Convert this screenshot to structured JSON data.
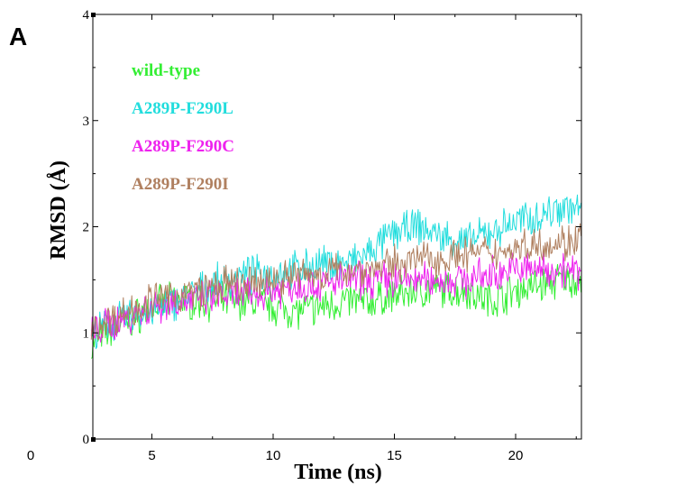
{
  "panel_label": "A",
  "chart_data": {
    "type": "line",
    "title": "",
    "xlabel": "Time (ns)",
    "ylabel": "RMSD (Å)",
    "xlim": [
      0,
      24
    ],
    "ylim": [
      0,
      4
    ],
    "x_visible_start": 2.5,
    "xticks": [
      0,
      5,
      10,
      15,
      20
    ],
    "yticks": [
      0,
      1,
      2,
      3,
      4
    ],
    "grid": false,
    "legend_position": "top-left",
    "series": [
      {
        "name": "wild-type",
        "color": "#33ee33",
        "x": [
          2.5,
          3,
          4,
          5,
          6,
          7,
          8,
          9,
          10,
          11,
          12,
          13,
          14,
          15,
          16,
          17,
          18,
          19,
          20,
          21,
          22,
          22.7
        ],
        "values": [
          0.85,
          1.0,
          1.1,
          1.25,
          1.3,
          1.3,
          1.3,
          1.3,
          1.25,
          1.2,
          1.25,
          1.3,
          1.3,
          1.35,
          1.4,
          1.4,
          1.4,
          1.3,
          1.4,
          1.45,
          1.5,
          1.5
        ]
      },
      {
        "name": "A289P-F290L",
        "color": "#22dddd",
        "x": [
          2.5,
          3,
          4,
          5,
          6,
          7,
          8,
          9,
          10,
          11,
          12,
          13,
          14,
          15,
          16,
          17,
          18,
          19,
          20,
          21,
          22,
          22.7
        ],
        "values": [
          0.95,
          1.05,
          1.15,
          1.2,
          1.3,
          1.4,
          1.5,
          1.55,
          1.55,
          1.6,
          1.65,
          1.65,
          1.75,
          1.95,
          2.0,
          1.9,
          1.85,
          1.95,
          2.05,
          2.1,
          2.2,
          2.15
        ]
      },
      {
        "name": "A289P-F290C",
        "color": "#ee22ee",
        "x": [
          2.5,
          3,
          4,
          5,
          6,
          7,
          8,
          9,
          10,
          11,
          12,
          13,
          14,
          15,
          16,
          17,
          18,
          19,
          20,
          21,
          22,
          22.7
        ],
        "values": [
          1.0,
          1.05,
          1.15,
          1.25,
          1.3,
          1.3,
          1.35,
          1.35,
          1.4,
          1.45,
          1.45,
          1.5,
          1.5,
          1.5,
          1.5,
          1.5,
          1.5,
          1.55,
          1.6,
          1.6,
          1.6,
          1.55
        ]
      },
      {
        "name": "A289P-F290I",
        "color": "#b08060",
        "x": [
          2.5,
          3,
          4,
          5,
          6,
          7,
          8,
          9,
          10,
          11,
          12,
          13,
          14,
          15,
          16,
          17,
          18,
          19,
          20,
          21,
          22,
          22.7
        ],
        "values": [
          1.0,
          1.1,
          1.2,
          1.3,
          1.35,
          1.4,
          1.45,
          1.45,
          1.5,
          1.55,
          1.55,
          1.6,
          1.6,
          1.65,
          1.7,
          1.7,
          1.75,
          1.75,
          1.8,
          1.85,
          1.85,
          1.9
        ]
      }
    ]
  }
}
